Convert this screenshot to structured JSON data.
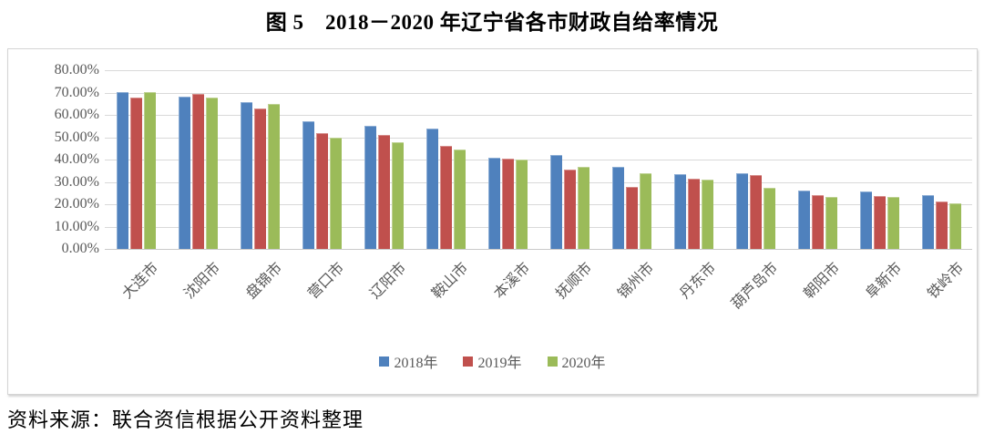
{
  "title": "图 5　2018－2020 年辽宁省各市财政自给率情况",
  "source": "资料来源：联合资信根据公开资料整理",
  "colors": {
    "grid": "#d9d9d9",
    "axis_text": "#595959",
    "series_2018": "#4F81BD",
    "series_2019": "#C0504D",
    "series_2020": "#9BBB59"
  },
  "chart_data": {
    "type": "bar",
    "title": "图 5　2018－2020 年辽宁省各市财政自给率情况",
    "xlabel": "",
    "ylabel": "",
    "ylim": [
      0,
      80
    ],
    "ytick_step": 10,
    "ytick_labels": [
      "0.00%",
      "10.00%",
      "20.00%",
      "30.00%",
      "40.00%",
      "50.00%",
      "60.00%",
      "70.00%",
      "80.00%"
    ],
    "grid": true,
    "legend_position": "bottom",
    "categories": [
      "大连市",
      "沈阳市",
      "盘锦市",
      "营口市",
      "辽阳市",
      "鞍山市",
      "本溪市",
      "抚顺市",
      "锦州市",
      "丹东市",
      "葫芦岛市",
      "朝阳市",
      "阜新市",
      "铁岭市"
    ],
    "series": [
      {
        "name": "2018年",
        "color": "#4F81BD",
        "values": [
          70.1,
          68.3,
          65.6,
          57.0,
          55.3,
          54.0,
          41.0,
          42.2,
          36.6,
          33.3,
          33.8,
          26.0,
          25.8,
          24.0
        ]
      },
      {
        "name": "2019年",
        "color": "#C0504D",
        "values": [
          67.8,
          69.4,
          62.9,
          52.0,
          51.0,
          46.2,
          40.4,
          35.5,
          27.6,
          31.3,
          33.2,
          24.2,
          23.5,
          21.1
        ]
      },
      {
        "name": "2020年",
        "color": "#9BBB59",
        "values": [
          70.3,
          67.9,
          64.7,
          49.6,
          47.9,
          44.5,
          40.0,
          36.9,
          34.0,
          30.9,
          27.4,
          23.4,
          23.3,
          20.6
        ]
      }
    ]
  }
}
